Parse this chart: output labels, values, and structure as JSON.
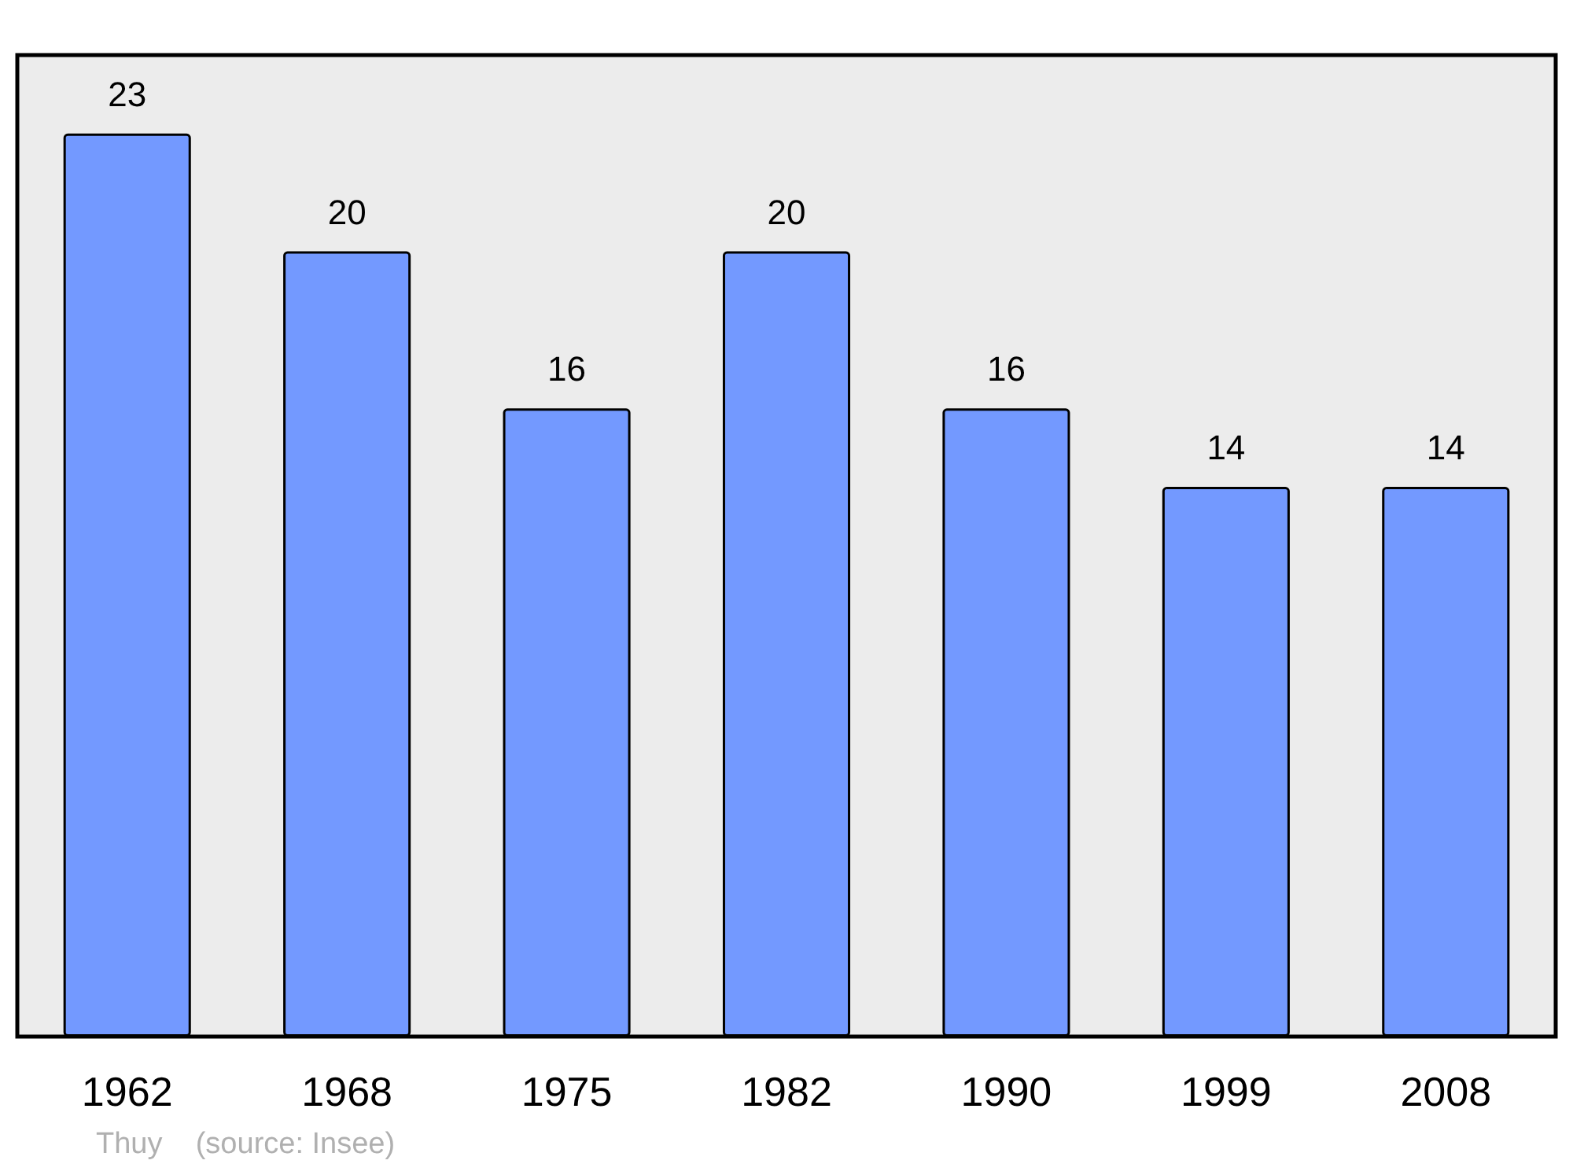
{
  "chart_data": {
    "type": "bar",
    "categories": [
      "1962",
      "1968",
      "1975",
      "1982",
      "1990",
      "1999",
      "2008"
    ],
    "values": [
      23,
      20,
      16,
      20,
      16,
      14,
      14
    ],
    "color": "#7399ff",
    "data_labels": true,
    "annotations": [
      "Thuy    (source: Insee)"
    ]
  }
}
